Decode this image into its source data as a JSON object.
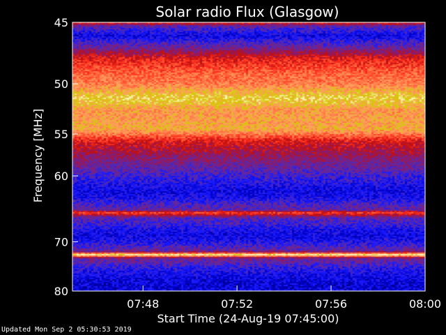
{
  "chart_data": {
    "type": "heatmap",
    "title": "Solar radio Flux (Glasgow)",
    "xlabel": "Start Time (24-Aug-19 07:45:00)",
    "ylabel": "Frequency [MHz]",
    "x_range": [
      "07:45",
      "08:00"
    ],
    "y_range": [
      45,
      80
    ],
    "x_ticks": [
      "07:48",
      "07:52",
      "07:56",
      "08:00"
    ],
    "y_ticks": [
      45,
      50,
      55,
      60,
      70,
      80
    ],
    "y_scale": "reciprocal",
    "colormap": [
      "#000060",
      "#0000c8",
      "#1a1aff",
      "#5a2aa8",
      "#8a1a70",
      "#c01010",
      "#ff3020",
      "#ff7040",
      "#ffa060",
      "#d4c800",
      "#fff8c0"
    ],
    "frequency_profile": [
      {
        "f": 45.0,
        "level": 0.55
      },
      {
        "f": 45.3,
        "level": 0.3
      },
      {
        "f": 46.0,
        "level": 0.15
      },
      {
        "f": 47.0,
        "level": 0.35
      },
      {
        "f": 47.8,
        "level": 0.55
      },
      {
        "f": 48.5,
        "level": 0.62
      },
      {
        "f": 49.3,
        "level": 0.7
      },
      {
        "f": 50.0,
        "level": 0.72
      },
      {
        "f": 50.8,
        "level": 0.85
      },
      {
        "f": 51.3,
        "level": 0.92
      },
      {
        "f": 51.8,
        "level": 0.88
      },
      {
        "f": 52.5,
        "level": 0.78
      },
      {
        "f": 53.5,
        "level": 0.8
      },
      {
        "f": 54.5,
        "level": 0.82
      },
      {
        "f": 55.0,
        "level": 0.72
      },
      {
        "f": 55.5,
        "level": 0.6
      },
      {
        "f": 56.0,
        "level": 0.52
      },
      {
        "f": 57.0,
        "level": 0.45
      },
      {
        "f": 58.0,
        "level": 0.38
      },
      {
        "f": 59.0,
        "level": 0.32
      },
      {
        "f": 60.0,
        "level": 0.25
      },
      {
        "f": 61.0,
        "level": 0.2
      },
      {
        "f": 62.0,
        "level": 0.15
      },
      {
        "f": 63.0,
        "level": 0.18
      },
      {
        "f": 64.0,
        "level": 0.28
      },
      {
        "f": 64.8,
        "level": 0.32
      },
      {
        "f": 65.2,
        "level": 0.62
      },
      {
        "f": 66.0,
        "level": 0.3
      },
      {
        "f": 67.0,
        "level": 0.25
      },
      {
        "f": 68.0,
        "level": 0.18
      },
      {
        "f": 69.0,
        "level": 0.15
      },
      {
        "f": 70.0,
        "level": 0.2
      },
      {
        "f": 71.0,
        "level": 0.28
      },
      {
        "f": 71.8,
        "level": 0.35
      },
      {
        "f": 72.4,
        "level": 1.0
      },
      {
        "f": 73.0,
        "level": 0.35
      },
      {
        "f": 74.0,
        "level": 0.3
      },
      {
        "f": 75.0,
        "level": 0.22
      },
      {
        "f": 76.0,
        "level": 0.18
      },
      {
        "f": 77.0,
        "level": 0.15
      },
      {
        "f": 78.0,
        "level": 0.13
      },
      {
        "f": 79.0,
        "level": 0.12
      },
      {
        "f": 80.0,
        "level": 0.15
      }
    ]
  },
  "footer": {
    "updated": "Updated Mon Sep  2 05:30:53 2019"
  }
}
